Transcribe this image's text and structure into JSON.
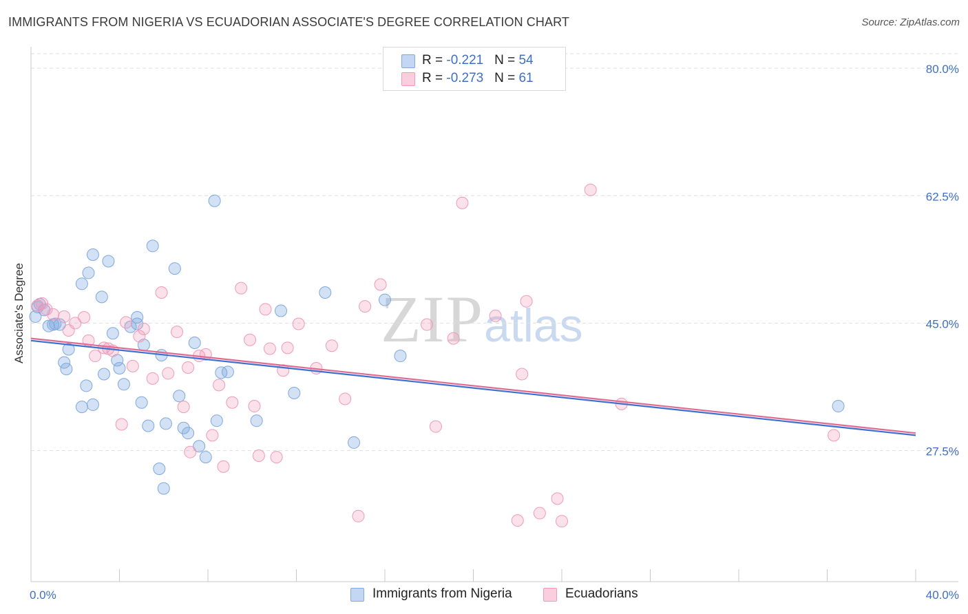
{
  "header": {
    "title": "IMMIGRANTS FROM NIGERIA VS ECUADORIAN ASSOCIATE'S DEGREE CORRELATION CHART",
    "source": "Source: ZipAtlas.com"
  },
  "watermark": {
    "zip": "ZIP",
    "atlas": "atlas"
  },
  "legend": {
    "rows": [
      {
        "r_label": "R = ",
        "r_value": "-0.221",
        "n_label": "N = ",
        "n_value": "54"
      },
      {
        "r_label": "R = ",
        "r_value": "-0.273",
        "n_label": "N = ",
        "n_value": "61"
      }
    ]
  },
  "bottom_legend": {
    "items": [
      {
        "label": "Immigrants from Nigeria"
      },
      {
        "label": "Ecuadorians"
      }
    ]
  },
  "chart_data": {
    "type": "scatter",
    "title": "IMMIGRANTS FROM NIGERIA VS ECUADORIAN ASSOCIATE'S DEGREE CORRELATION CHART",
    "xlabel": "",
    "ylabel": "Associate's Degree",
    "xlim": [
      0,
      40
    ],
    "ylim": [
      9.5,
      82
    ],
    "x_tick_labels": [
      "0.0%",
      "40.0%"
    ],
    "y_ticks": [
      27.5,
      45.0,
      62.5,
      80.0
    ],
    "y_tick_labels": [
      "27.5%",
      "45.0%",
      "62.5%",
      "80.0%"
    ],
    "grid": true,
    "colors": {
      "nigeria": "#7fa8e0",
      "ecuadorians": "#f09ab8",
      "nigeria_line": "#3d6fd0",
      "ecuadorians_line": "#e06a90",
      "tick_text": "#3d6fc4"
    },
    "series": [
      {
        "name": "Immigrants from Nigeria",
        "color": "#7fa8e0",
        "points": [
          [
            0.3,
            47.2
          ],
          [
            0.6,
            46.8
          ],
          [
            0.8,
            44.6
          ],
          [
            1.0,
            44.8
          ],
          [
            1.3,
            44.8
          ],
          [
            1.5,
            39.6
          ],
          [
            1.6,
            38.7
          ],
          [
            1.7,
            41.4
          ],
          [
            2.3,
            33.5
          ],
          [
            2.3,
            50.4
          ],
          [
            2.5,
            36.4
          ],
          [
            2.6,
            51.9
          ],
          [
            2.8,
            33.8
          ],
          [
            2.8,
            54.4
          ],
          [
            3.2,
            48.6
          ],
          [
            3.3,
            38.0
          ],
          [
            3.5,
            53.5
          ],
          [
            3.7,
            43.6
          ],
          [
            3.9,
            39.9
          ],
          [
            4.0,
            38.8
          ],
          [
            4.2,
            36.6
          ],
          [
            4.5,
            44.5
          ],
          [
            4.8,
            44.9
          ],
          [
            4.8,
            45.8
          ],
          [
            5.0,
            34.1
          ],
          [
            5.1,
            42.0
          ],
          [
            5.3,
            30.9
          ],
          [
            5.5,
            55.6
          ],
          [
            5.8,
            25.0
          ],
          [
            5.9,
            40.6
          ],
          [
            6.0,
            22.3
          ],
          [
            6.1,
            31.2
          ],
          [
            6.5,
            52.5
          ],
          [
            6.7,
            35.0
          ],
          [
            6.9,
            30.6
          ],
          [
            7.1,
            29.9
          ],
          [
            7.4,
            42.3
          ],
          [
            7.6,
            28.1
          ],
          [
            7.9,
            26.6
          ],
          [
            8.3,
            61.8
          ],
          [
            8.4,
            31.6
          ],
          [
            8.6,
            38.2
          ],
          [
            8.9,
            38.3
          ],
          [
            10.2,
            31.6
          ],
          [
            11.3,
            46.7
          ],
          [
            11.9,
            35.4
          ],
          [
            13.3,
            49.2
          ],
          [
            14.6,
            28.6
          ],
          [
            16.0,
            48.2
          ],
          [
            16.7,
            40.5
          ],
          [
            36.5,
            33.6
          ],
          [
            0.2,
            45.9
          ],
          [
            0.4,
            47.6
          ],
          [
            1.1,
            44.9
          ]
        ]
      },
      {
        "name": "Ecuadorians",
        "color": "#f09ab8",
        "points": [
          [
            0.3,
            47.4
          ],
          [
            0.5,
            47.7
          ],
          [
            0.7,
            46.9
          ],
          [
            1.0,
            46.2
          ],
          [
            1.5,
            45.9
          ],
          [
            1.7,
            44.0
          ],
          [
            2.0,
            45.0
          ],
          [
            2.4,
            45.8
          ],
          [
            2.6,
            42.6
          ],
          [
            2.9,
            40.5
          ],
          [
            3.3,
            41.6
          ],
          [
            3.5,
            41.5
          ],
          [
            3.7,
            41.2
          ],
          [
            4.1,
            31.1
          ],
          [
            4.3,
            45.1
          ],
          [
            4.6,
            39.1
          ],
          [
            4.9,
            43.2
          ],
          [
            5.1,
            44.2
          ],
          [
            5.5,
            37.4
          ],
          [
            5.9,
            49.2
          ],
          [
            6.2,
            38.1
          ],
          [
            6.6,
            43.8
          ],
          [
            6.9,
            33.5
          ],
          [
            7.1,
            38.9
          ],
          [
            7.2,
            27.3
          ],
          [
            7.6,
            40.5
          ],
          [
            7.9,
            40.7
          ],
          [
            8.2,
            29.6
          ],
          [
            8.5,
            36.5
          ],
          [
            8.7,
            25.3
          ],
          [
            9.1,
            34.1
          ],
          [
            9.5,
            49.8
          ],
          [
            9.9,
            42.7
          ],
          [
            10.1,
            33.6
          ],
          [
            10.3,
            26.8
          ],
          [
            10.6,
            46.9
          ],
          [
            10.8,
            41.5
          ],
          [
            11.1,
            26.6
          ],
          [
            11.4,
            38.5
          ],
          [
            11.6,
            41.6
          ],
          [
            12.1,
            44.9
          ],
          [
            12.9,
            38.8
          ],
          [
            13.6,
            41.9
          ],
          [
            14.2,
            34.6
          ],
          [
            14.8,
            18.5
          ],
          [
            15.1,
            47.3
          ],
          [
            15.8,
            50.3
          ],
          [
            17.9,
            44.8
          ],
          [
            18.3,
            30.8
          ],
          [
            19.1,
            42.9
          ],
          [
            19.5,
            61.5
          ],
          [
            21.0,
            46.0
          ],
          [
            22.0,
            17.9
          ],
          [
            22.2,
            38.0
          ],
          [
            22.4,
            48.0
          ],
          [
            23.0,
            18.9
          ],
          [
            23.8,
            20.9
          ],
          [
            24.0,
            17.8
          ],
          [
            25.3,
            63.3
          ],
          [
            26.7,
            33.9
          ],
          [
            36.3,
            29.6
          ]
        ]
      }
    ],
    "trendlines": [
      {
        "series": "Immigrants from Nigeria",
        "x": [
          0,
          40
        ],
        "y": [
          42.6,
          29.6
        ]
      },
      {
        "series": "Ecuadorians",
        "x": [
          0,
          40
        ],
        "y": [
          42.9,
          29.9
        ]
      }
    ]
  }
}
